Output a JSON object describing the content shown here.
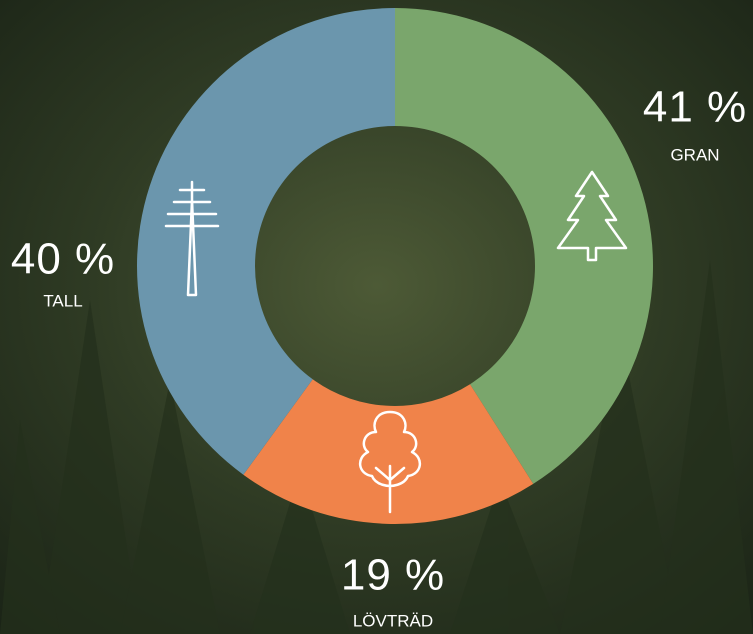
{
  "chart_data": {
    "type": "pie",
    "donut": true,
    "categories": [
      "GRAN",
      "LÖVTRÄD",
      "TALL"
    ],
    "values": [
      41,
      19,
      40
    ],
    "value_labels": [
      "41 %",
      "19 %",
      "40 %"
    ],
    "colors": [
      "#7aa66c",
      "#f0834a",
      "#6b96ad"
    ]
  }
}
